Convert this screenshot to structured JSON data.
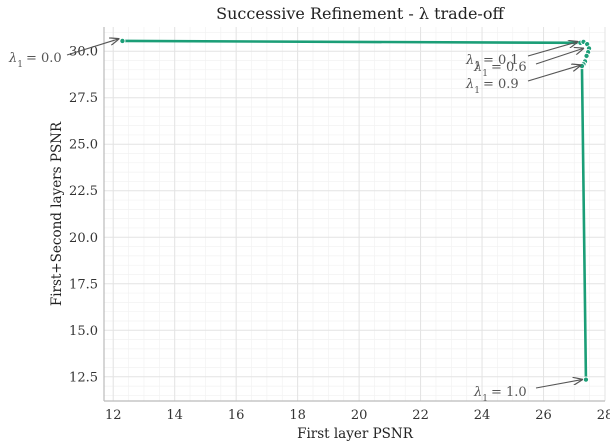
{
  "chart_data": {
    "type": "line",
    "title": "Successive Refinement - λ trade-off",
    "xlabel": "First layer PSNR",
    "ylabel": "First+Second layers PSNR",
    "xlim": [
      11.7,
      28.0
    ],
    "ylim": [
      11.2,
      31.3
    ],
    "xticks": [
      12,
      14,
      16,
      18,
      20,
      22,
      24,
      26,
      28
    ],
    "yticks": [
      12.5,
      15.0,
      17.5,
      20.0,
      22.5,
      25.0,
      27.5,
      30.0
    ],
    "xtick_labels": [
      "12",
      "14",
      "16",
      "18",
      "20",
      "22",
      "24",
      "26",
      "28"
    ],
    "ytick_labels": [
      "12.5",
      "15.0",
      "17.5",
      "20.0",
      "22.5",
      "25.0",
      "27.5",
      "30.0"
    ],
    "grid": true,
    "series": [
      {
        "color": "#1b9e77",
        "x": [
          12.3,
          27.2,
          27.3,
          27.42,
          27.48,
          27.45,
          27.4,
          27.35,
          27.3,
          27.25,
          27.38
        ],
        "y": [
          30.55,
          30.45,
          30.5,
          30.38,
          30.15,
          29.95,
          29.75,
          29.45,
          29.3,
          29.2,
          12.35
        ]
      }
    ],
    "annotations": [
      {
        "label": "λ₁ = 0.0",
        "symbol": "λ",
        "sub": "1",
        "value": "= 0.0",
        "x": 12.3,
        "y": 30.55
      },
      {
        "label": "λ₁ = 0.1",
        "symbol": "λ",
        "sub": "1",
        "value": "= 0.1",
        "x": 27.2,
        "y": 30.45
      },
      {
        "label": "λ₁ = 0.6",
        "symbol": "λ",
        "sub": "1",
        "value": "= 0.6",
        "x": 27.42,
        "y": 30.15
      },
      {
        "label": "λ₁ = 0.9",
        "symbol": "λ",
        "sub": "1",
        "value": "= 0.9",
        "x": 27.3,
        "y": 29.3
      },
      {
        "label": "λ₁ = 1.0",
        "symbol": "λ",
        "sub": "1",
        "value": "= 1.0",
        "x": 27.38,
        "y": 12.35
      }
    ]
  }
}
